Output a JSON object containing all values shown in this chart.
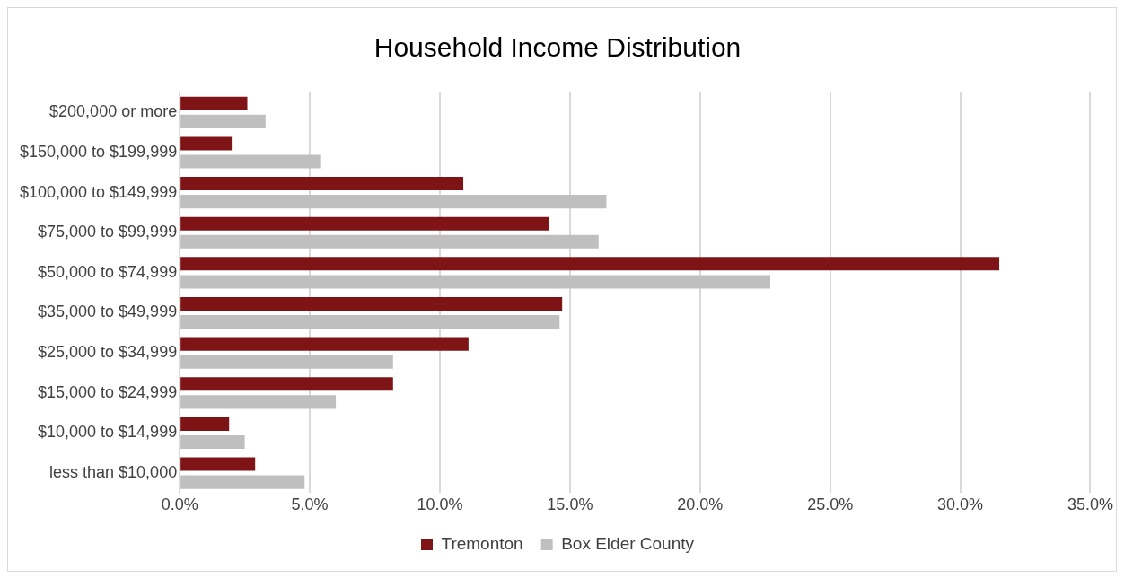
{
  "chart_data": {
    "type": "bar",
    "orientation": "horizontal",
    "title": "Household Income Distribution",
    "categories": [
      "$200,000 or more",
      "$150,000 to $199,999",
      "$100,000 to $149,999",
      "$75,000 to $99,999",
      "$50,000 to $74,999",
      "$35,000 to $49,999",
      "$25,000 to $34,999",
      "$15,000 to $24,999",
      "$10,000 to $14,999",
      "less than $10,000"
    ],
    "series": [
      {
        "name": "Tremonton",
        "color": "#7f1416",
        "values": [
          2.6,
          2.0,
          10.9,
          14.2,
          31.5,
          14.7,
          11.1,
          8.2,
          1.9,
          2.9
        ]
      },
      {
        "name": "Box Elder County",
        "color": "#bfbfbf",
        "values": [
          3.3,
          5.4,
          16.4,
          16.1,
          22.7,
          14.6,
          8.2,
          6.0,
          2.5,
          4.8
        ]
      }
    ],
    "xlim": [
      0,
      35
    ],
    "xticks": [
      {
        "value": 0,
        "label": "0.0%"
      },
      {
        "value": 5,
        "label": "5.0%"
      },
      {
        "value": 10,
        "label": "10.0%"
      },
      {
        "value": 15,
        "label": "15.0%"
      },
      {
        "value": 20,
        "label": "20.0%"
      },
      {
        "value": 25,
        "label": "25.0%"
      },
      {
        "value": 30,
        "label": "30.0%"
      },
      {
        "value": 35,
        "label": "35.0%"
      }
    ],
    "grid": "x",
    "legend": "bottom"
  }
}
